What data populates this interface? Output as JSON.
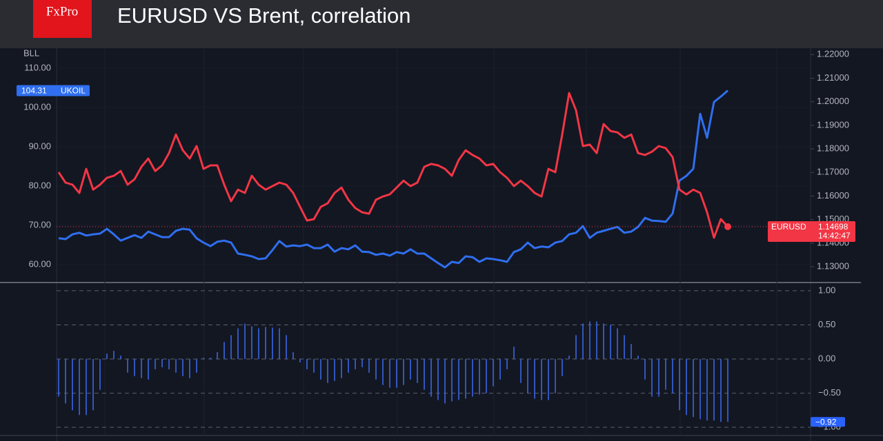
{
  "header": {
    "logo": "FxPro",
    "title": "EURUSD VS Brent, correlation"
  },
  "chart_data": [
    {
      "type": "line",
      "y_label": "BLL",
      "countdown": "14:42:47",
      "ylim": [
        55.44,
        115.09
      ],
      "yticks": [
        {
          "value": 60,
          "label": "60.00"
        },
        {
          "value": 70,
          "label": "70.00"
        },
        {
          "value": 80,
          "label": "80.00"
        },
        {
          "value": 90,
          "label": "90.00"
        },
        {
          "value": 100,
          "label": "100.00"
        },
        {
          "value": 110,
          "label": "110.00"
        }
      ],
      "y2lim": [
        1.1233,
        1.2227
      ],
      "y2ticks": [
        {
          "value": 1.13,
          "label": "1.13000"
        },
        {
          "value": 1.14,
          "label": "1.14000"
        },
        {
          "value": 1.15,
          "label": "1.15000"
        },
        {
          "value": 1.16,
          "label": "1.16000"
        },
        {
          "value": 1.17,
          "label": "1.17000"
        },
        {
          "value": 1.18,
          "label": "1.18000"
        },
        {
          "value": 1.19,
          "label": "1.19000"
        },
        {
          "value": 1.2,
          "label": "1.20000"
        },
        {
          "value": 1.21,
          "label": "1.21000"
        },
        {
          "value": 1.22,
          "label": "1.22000"
        }
      ],
      "series": [
        {
          "name": "UKOIL",
          "color": "#2f6ff0",
          "axis": "y",
          "values": [
            66.7,
            66.5,
            67.7,
            68.1,
            67.4,
            67.7,
            67.9,
            69.1,
            67.7,
            66.1,
            66.8,
            67.5,
            66.8,
            68.4,
            67.7,
            67.0,
            67.0,
            68.6,
            69.1,
            68.9,
            66.7,
            65.6,
            64.7,
            65.8,
            66.1,
            65.6,
            62.8,
            62.5,
            62.1,
            61.4,
            61.6,
            63.7,
            66.0,
            64.6,
            64.9,
            64.7,
            65.1,
            64.2,
            64.2,
            65.1,
            63.3,
            64.2,
            63.9,
            64.9,
            63.3,
            63.2,
            62.5,
            62.8,
            62.3,
            63.2,
            62.8,
            63.9,
            62.8,
            62.8,
            61.6,
            60.4,
            59.3,
            60.7,
            60.4,
            62.1,
            61.9,
            60.7,
            61.6,
            61.4,
            61.1,
            60.7,
            63.2,
            63.9,
            65.6,
            64.2,
            64.6,
            64.4,
            65.6,
            66.0,
            67.7,
            68.1,
            69.8,
            66.8,
            68.1,
            68.6,
            69.1,
            69.6,
            68.1,
            68.4,
            69.6,
            71.9,
            71.2,
            71.1,
            70.9,
            73.0,
            81.4,
            82.6,
            84.4,
            98.4,
            92.3,
            101.4,
            102.8,
            104.31
          ]
        },
        {
          "name": "EURUSD",
          "color": "#f23645",
          "axis": "y2",
          "values": [
            1.1701,
            1.1657,
            1.1648,
            1.1613,
            1.1715,
            1.1627,
            1.1648,
            1.1677,
            1.1686,
            1.1706,
            1.1648,
            1.1671,
            1.1724,
            1.1759,
            1.1706,
            1.173,
            1.1782,
            1.1861,
            1.1794,
            1.1759,
            1.1812,
            1.1715,
            1.173,
            1.173,
            1.1648,
            1.1578,
            1.1627,
            1.1613,
            1.1686,
            1.1648,
            1.1627,
            1.1642,
            1.1657,
            1.1648,
            1.1613,
            1.1554,
            1.1496,
            1.1502,
            1.1554,
            1.1569,
            1.1613,
            1.1636,
            1.1584,
            1.1549,
            1.1531,
            1.1525,
            1.1584,
            1.1598,
            1.1607,
            1.1636,
            1.1665,
            1.1642,
            1.1657,
            1.1724,
            1.1736,
            1.173,
            1.1715,
            1.1686,
            1.1753,
            1.1794,
            1.1774,
            1.1759,
            1.173,
            1.1736,
            1.1701,
            1.1677,
            1.1642,
            1.1665,
            1.1642,
            1.1613,
            1.1598,
            1.1715,
            1.1701,
            1.1861,
            1.2037,
            1.1964,
            1.1812,
            1.1818,
            1.1782,
            1.1905,
            1.1876,
            1.187,
            1.1847,
            1.1861,
            1.1782,
            1.1774,
            1.1788,
            1.1812,
            1.1803,
            1.1765,
            1.1627,
            1.1607,
            1.1627,
            1.1613,
            1.1531,
            1.1423,
            1.1502,
            1.14698
          ]
        }
      ]
    },
    {
      "type": "bar",
      "color": "#3b66e6",
      "grid": "dashed",
      "ylim": [
        -1.2,
        1.1
      ],
      "yticks": [
        {
          "value": -1,
          "label": "−1.00"
        },
        {
          "value": -0.5,
          "label": "−0.50"
        },
        {
          "value": 0,
          "label": "0.00"
        },
        {
          "value": 0.5,
          "label": "0.50"
        },
        {
          "value": 1,
          "label": "1.00"
        }
      ],
      "values": [
        -0.55,
        -0.65,
        -0.75,
        -0.82,
        -0.82,
        -0.75,
        -0.45,
        0.08,
        0.12,
        0.05,
        -0.2,
        -0.25,
        -0.28,
        -0.3,
        -0.15,
        -0.12,
        -0.15,
        -0.2,
        -0.25,
        -0.28,
        -0.2,
        0.02,
        0.02,
        0.1,
        0.25,
        0.35,
        0.45,
        0.52,
        0.48,
        0.45,
        0.47,
        0.46,
        0.45,
        0.35,
        0.1,
        -0.05,
        -0.15,
        -0.2,
        -0.3,
        -0.35,
        -0.32,
        -0.28,
        -0.2,
        -0.15,
        -0.12,
        -0.2,
        -0.3,
        -0.38,
        -0.42,
        -0.42,
        -0.38,
        -0.3,
        -0.35,
        -0.45,
        -0.55,
        -0.6,
        -0.65,
        -0.62,
        -0.6,
        -0.58,
        -0.55,
        -0.52,
        -0.5,
        -0.4,
        -0.3,
        -0.15,
        0.18,
        -0.35,
        -0.5,
        -0.58,
        -0.6,
        -0.6,
        -0.5,
        -0.25,
        0.05,
        0.35,
        0.52,
        0.55,
        0.55,
        0.52,
        0.5,
        0.45,
        0.35,
        0.22,
        0.05,
        -0.3,
        -0.55,
        -0.55,
        -0.45,
        -0.5,
        -0.75,
        -0.82,
        -0.85,
        -0.88,
        -0.9,
        -0.9,
        -0.92,
        -0.92
      ],
      "value_labels": [
        null,
        null,
        null,
        null,
        null,
        null,
        null,
        null,
        null,
        null,
        null,
        null,
        null,
        null,
        null,
        null,
        null,
        null,
        null,
        null,
        null,
        null,
        null,
        null,
        null,
        null,
        null,
        null,
        null,
        null,
        null,
        null,
        null,
        null,
        null,
        null,
        null,
        null,
        null,
        null,
        null,
        null,
        null,
        null,
        null,
        null,
        null,
        null,
        null,
        null,
        null,
        null,
        null,
        null,
        null,
        null,
        null,
        null,
        null,
        null,
        null,
        null,
        null,
        null,
        null,
        null,
        null,
        null,
        null,
        null,
        null,
        null,
        null,
        null,
        null,
        null,
        null,
        null,
        null,
        null,
        null,
        null,
        null,
        null,
        null,
        null,
        null,
        null,
        null,
        null,
        null,
        null,
        null,
        null,
        null,
        null,
        null,
        "−0.92"
      ]
    }
  ]
}
